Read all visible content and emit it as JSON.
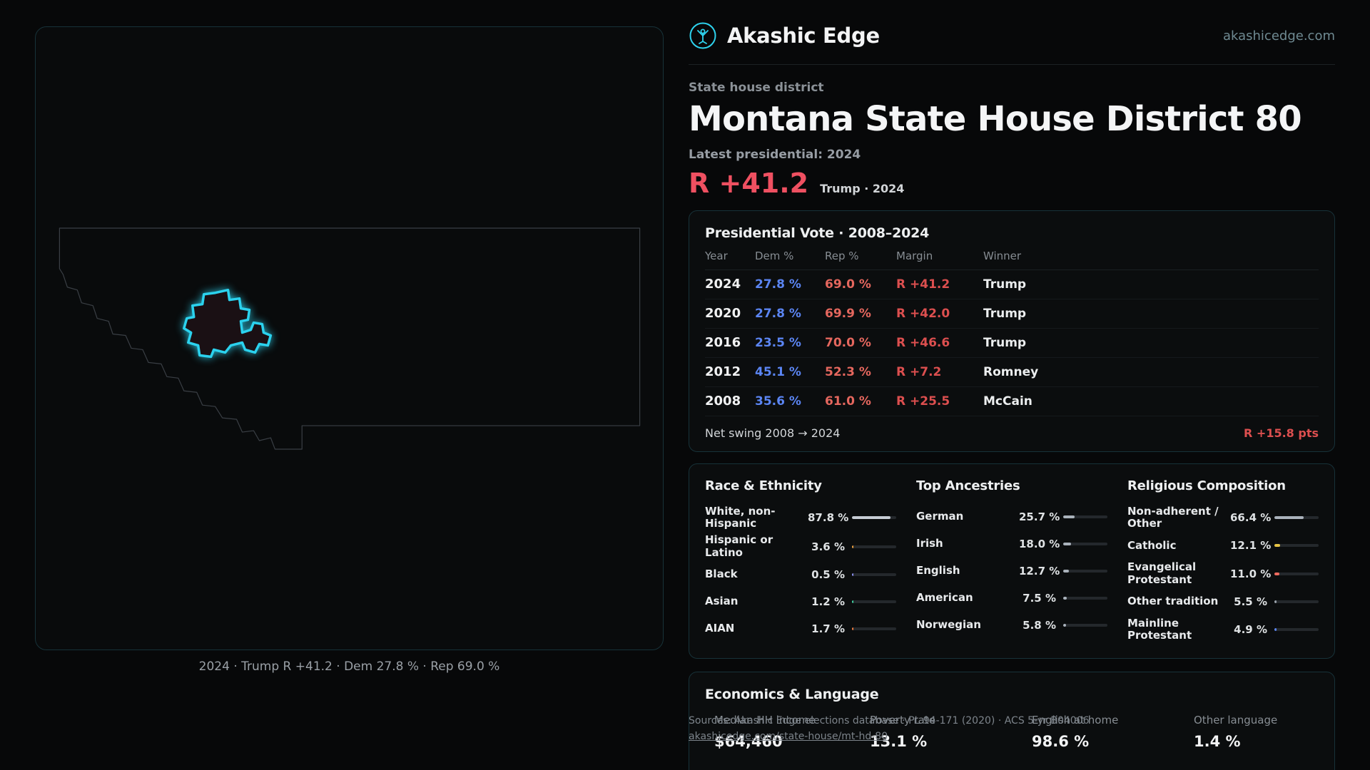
{
  "brand": {
    "name": "Akashic Edge",
    "domain": "akashicedge.com"
  },
  "page": {
    "kicker": "State house district",
    "title": "Montana State House District 80",
    "latest_label": "Latest presidential: 2024",
    "headline_margin": "R +41.2",
    "headline_context": "Trump · 2024"
  },
  "map": {
    "caption": "2024 · Trump R +41.2 · Dem 27.8 % · Rep 69.0 %"
  },
  "presidential": {
    "title": "Presidential Vote · 2008–2024",
    "columns": [
      "Year",
      "Dem %",
      "Rep %",
      "Margin",
      "Winner"
    ],
    "rows": [
      {
        "year": "2024",
        "dem": "27.8 %",
        "rep": "69.0 %",
        "margin": "R +41.2",
        "winner": "Trump"
      },
      {
        "year": "2020",
        "dem": "27.8 %",
        "rep": "69.9 %",
        "margin": "R +42.0",
        "winner": "Trump"
      },
      {
        "year": "2016",
        "dem": "23.5 %",
        "rep": "70.0 %",
        "margin": "R +46.6",
        "winner": "Trump"
      },
      {
        "year": "2012",
        "dem": "45.1 %",
        "rep": "52.3 %",
        "margin": "R +7.2",
        "winner": "Romney"
      },
      {
        "year": "2008",
        "dem": "35.6 %",
        "rep": "61.0 %",
        "margin": "R +25.5",
        "winner": "McCain"
      }
    ],
    "net_swing_label": "Net swing 2008 → 2024",
    "net_swing_value": "R +15.8 pts"
  },
  "demographics": {
    "race": {
      "title": "Race & Ethnicity",
      "items": [
        {
          "label": "White, non-Hispanic",
          "value": "87.8 %",
          "pct": 87.8,
          "color": "#c6ccd4"
        },
        {
          "label": "Hispanic or Latino",
          "value": "3.6 %",
          "pct": 3.6,
          "color": "#f0a13c"
        },
        {
          "label": "Black",
          "value": "0.5 %",
          "pct": 0.5,
          "color": "#8a8ff0"
        },
        {
          "label": "Asian",
          "value": "1.2 %",
          "pct": 1.2,
          "color": "#3fd0a0"
        },
        {
          "label": "AIAN",
          "value": "1.7 %",
          "pct": 1.7,
          "color": "#f07b3c"
        }
      ]
    },
    "ancestries": {
      "title": "Top Ancestries",
      "items": [
        {
          "label": "German",
          "value": "25.7 %",
          "pct": 25.7,
          "color": "#aab2bb"
        },
        {
          "label": "Irish",
          "value": "18.0 %",
          "pct": 18.0,
          "color": "#aab2bb"
        },
        {
          "label": "English",
          "value": "12.7 %",
          "pct": 12.7,
          "color": "#aab2bb"
        },
        {
          "label": "American",
          "value": "7.5 %",
          "pct": 7.5,
          "color": "#aab2bb"
        },
        {
          "label": "Norwegian",
          "value": "5.8 %",
          "pct": 5.8,
          "color": "#aab2bb"
        }
      ]
    },
    "religion": {
      "title": "Religious Composition",
      "items": [
        {
          "label": "Non-adherent / Other",
          "value": "66.4 %",
          "pct": 66.4,
          "color": "#aab2bb"
        },
        {
          "label": "Catholic",
          "value": "12.1 %",
          "pct": 12.1,
          "color": "#e8c444"
        },
        {
          "label": "Evangelical Protestant",
          "value": "11.0 %",
          "pct": 11.0,
          "color": "#ef6a5e"
        },
        {
          "label": "Other tradition",
          "value": "5.5 %",
          "pct": 5.5,
          "color": "#9aa2ab"
        },
        {
          "label": "Mainline Protestant",
          "value": "4.9 %",
          "pct": 4.9,
          "color": "#5b85f3"
        }
      ]
    }
  },
  "economics": {
    "title": "Economics & Language",
    "stats": [
      {
        "label": "Median HH income",
        "value": "$64,460"
      },
      {
        "label": "Poverty rate",
        "value": "13.1 %"
      },
      {
        "label": "English at home",
        "value": "98.6 %"
      },
      {
        "label": "Other language",
        "value": "1.4 %"
      }
    ]
  },
  "footer": {
    "sources_line1": "Sources: Akashic Edge elections database · PL 94-171 (2020) · ACS 5-yr B04006",
    "sources_line2": "akashicedge.com/state-house/mt-hd-80"
  }
}
